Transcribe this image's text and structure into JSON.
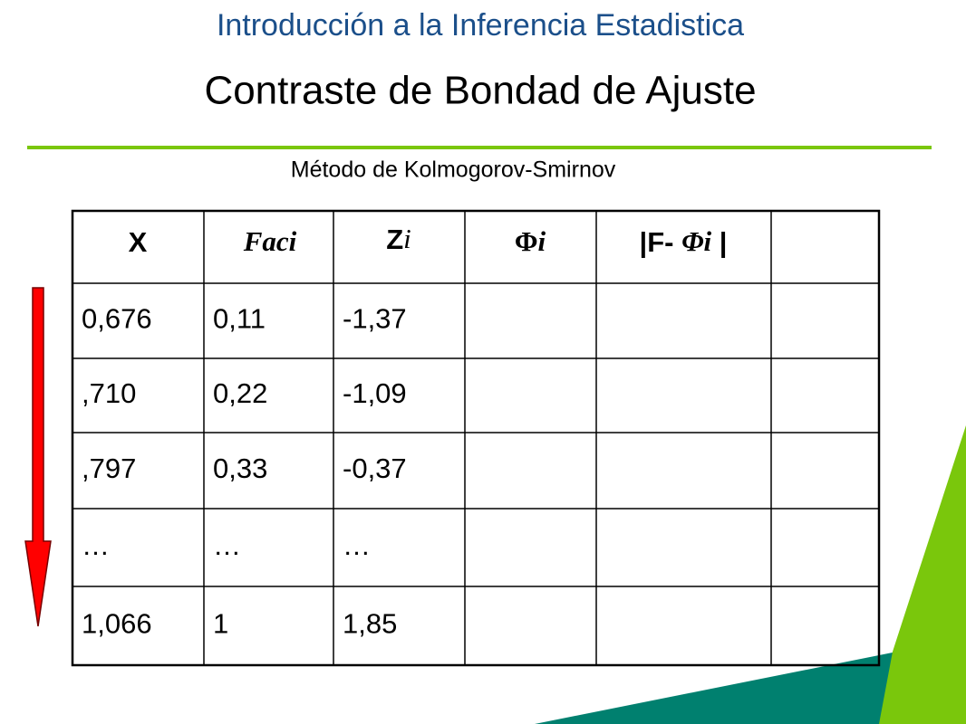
{
  "header": {
    "title": "Introducción a la Inferencia Estadistica",
    "subtitle": "Contraste de Bondad de Ajuste",
    "method": "Método de Kolmogorov-Smirnov"
  },
  "table": {
    "header": [
      [
        "X"
      ],
      [
        "Faci"
      ],
      [
        "Z",
        "i"
      ],
      [
        "Φ",
        "i"
      ],
      [
        "|F- ",
        "Φ",
        "i",
        " |"
      ]
    ],
    "rows": [
      [
        "0,676",
        "0,11",
        "-1,37"
      ],
      [
        ",710",
        "0,22",
        "-1,09"
      ],
      [
        ",797",
        "0,33",
        "-0,37"
      ],
      [
        "…",
        "…",
        "…"
      ],
      [
        "1,066",
        "1",
        "1,85"
      ]
    ]
  }
}
